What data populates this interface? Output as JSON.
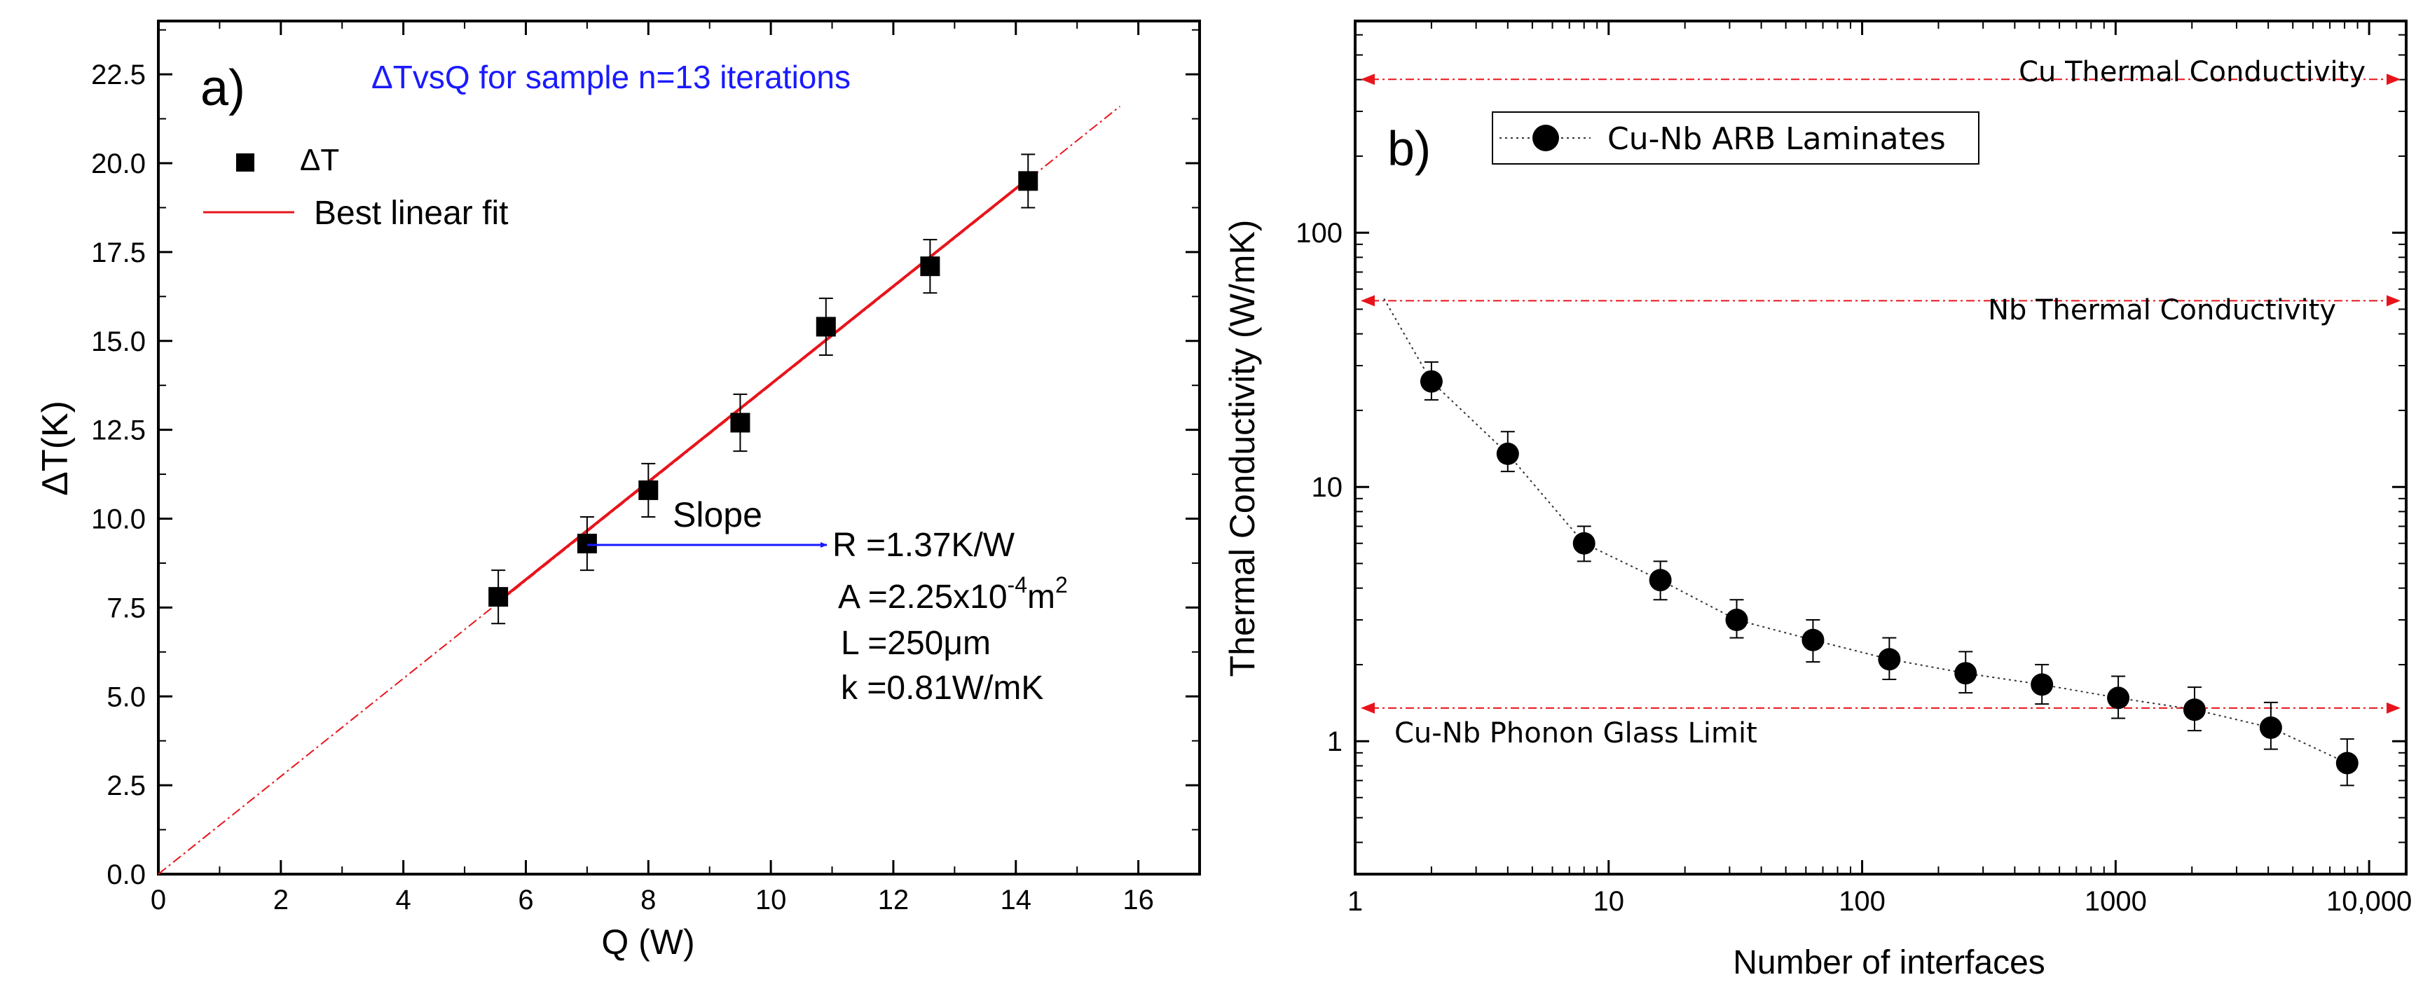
{
  "chart_data": [
    {
      "type": "scatter",
      "panel_label": "a)",
      "title": "ΔTvsQ for sample n=13 iterations",
      "xlabel": "Q (W)",
      "ylabel": "ΔT(K)",
      "xlim": [
        0,
        17
      ],
      "ylim": [
        0,
        24
      ],
      "xticks": [
        0,
        2,
        4,
        6,
        8,
        10,
        12,
        14,
        16
      ],
      "yticks": [
        0.0,
        2.5,
        5.0,
        7.5,
        10.0,
        12.5,
        15.0,
        17.5,
        20.0,
        22.5
      ],
      "x_tick_labels": [
        "0",
        "2",
        "4",
        "6",
        "8",
        "10",
        "12",
        "14",
        "16"
      ],
      "y_tick_labels": [
        "0.0",
        "2.5",
        "5.0",
        "7.5",
        "10.0",
        "12.5",
        "15.0",
        "17.5",
        "20.0",
        "22.5"
      ],
      "series": [
        {
          "name": "ΔT",
          "marker": "square",
          "x": [
            5.55,
            7.0,
            8.0,
            9.5,
            10.9,
            12.6,
            14.2
          ],
          "y": [
            7.8,
            9.3,
            10.8,
            12.7,
            15.4,
            17.1,
            19.5
          ],
          "yerr": [
            0.75,
            0.75,
            0.75,
            0.8,
            0.8,
            0.75,
            0.75
          ]
        },
        {
          "name": "Best linear fit",
          "style": "line",
          "x": [
            5.5,
            14.3
          ],
          "y": [
            7.6,
            19.7
          ],
          "extrapolation_x": [
            0,
            15.7
          ],
          "extrapolation_y": [
            0,
            21.6
          ]
        }
      ],
      "legend": [
        "ΔT",
        "Best linear fit"
      ],
      "annotations": {
        "slope_label": "Slope",
        "lines": [
          "R =1.37K/W",
          "A =2.25x10",
          "L =250μm",
          "k =0.81W/mK"
        ],
        "area_exponent": "-4",
        "area_unit": "m",
        "area_unit_exponent": "2"
      },
      "colors": {
        "points": "#000000",
        "fit": "#e8141b",
        "title": "#1a1aff",
        "arrow": "#1a1aff"
      }
    },
    {
      "type": "scatter",
      "scale": "log-log",
      "panel_label": "b)",
      "xlabel": "Number of interfaces",
      "ylabel": "Thermal Conductivity (W/mK)",
      "xlim": [
        1,
        14000
      ],
      "ylim": [
        0.3,
        680
      ],
      "xticks": [
        1,
        10,
        100,
        1000,
        10000
      ],
      "x_tick_labels": [
        "1",
        "10",
        "100",
        "1000",
        "10,000"
      ],
      "yticks": [
        1,
        10,
        100
      ],
      "y_tick_labels": [
        "1",
        "10",
        "100"
      ],
      "series": [
        {
          "name": "Cu-Nb ARB Laminates",
          "marker": "circle",
          "x": [
            2,
            4,
            8,
            16,
            32,
            64,
            128,
            256,
            512,
            1024,
            2048,
            4096,
            8192
          ],
          "y": [
            26,
            13.5,
            6.0,
            4.3,
            3.0,
            2.5,
            2.1,
            1.85,
            1.67,
            1.48,
            1.33,
            1.13,
            0.82
          ],
          "err_high": [
            31,
            16.5,
            7.0,
            5.1,
            3.6,
            3.0,
            2.55,
            2.25,
            2.0,
            1.8,
            1.63,
            1.42,
            1.02
          ],
          "err_low": [
            22,
            11.5,
            5.1,
            3.6,
            2.55,
            2.05,
            1.75,
            1.55,
            1.4,
            1.23,
            1.1,
            0.93,
            0.67
          ],
          "trend_x": [
            1.3,
            2,
            4,
            8,
            16,
            32,
            64,
            128,
            256,
            512,
            1024,
            2048,
            4096,
            8192
          ],
          "trend_y": [
            55,
            26,
            13.5,
            6.0,
            4.3,
            3.0,
            2.5,
            2.1,
            1.85,
            1.67,
            1.48,
            1.33,
            1.13,
            0.82
          ]
        }
      ],
      "reference_lines": [
        {
          "label": "Cu Thermal Conductivity",
          "value": 401
        },
        {
          "label": "Nb Thermal Conductivity",
          "value": 54
        },
        {
          "label": "Cu-Nb Phonon Glass Limit",
          "value": 1.35
        }
      ],
      "legend": [
        "Cu-Nb ARB Laminates"
      ],
      "colors": {
        "points": "#000000",
        "reference": "#e8141b"
      }
    }
  ]
}
